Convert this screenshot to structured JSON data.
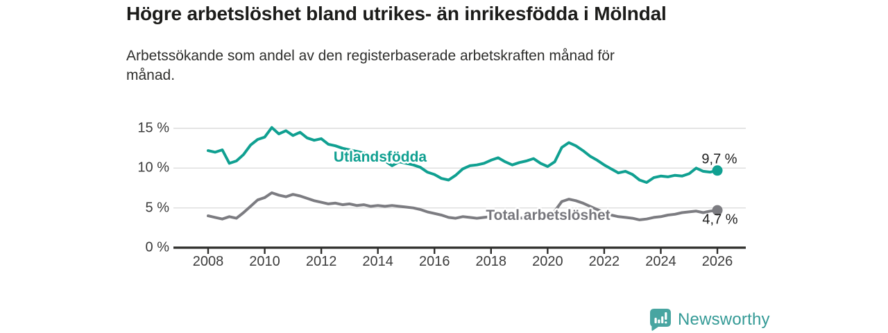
{
  "header": {
    "title": "Högre arbetslöshet bland utrikes- än inrikesfödda i Mölndal",
    "subtitle_line1": "Arbetssökande som andel av den registerbaserade arbetskraften månad för",
    "subtitle_line2": "månad."
  },
  "chart_data": {
    "type": "line",
    "title": "Högre arbetslöshet bland utrikes- än inrikesfödda i Mölndal",
    "subtitle": "Arbetssökande som andel av den registerbaserade arbetskraften månad för månad.",
    "unit": "%",
    "x_start": 2008,
    "x_step": 0.25,
    "x_ticks": [
      2008,
      2010,
      2012,
      2014,
      2016,
      2018,
      2020,
      2022,
      2024,
      2026
    ],
    "xlim": [
      2006.8,
      2027
    ],
    "ylim": [
      0,
      16.3
    ],
    "grid": "horizontal",
    "y_ticks": [
      {
        "value": 0,
        "label": "0 %"
      },
      {
        "value": 5,
        "label": "5 %"
      },
      {
        "value": 10,
        "label": "10 %"
      },
      {
        "value": 15,
        "label": "15 %"
      }
    ],
    "colors": {
      "accent_teal": "#10a091",
      "neutral_gray": "#7c7c81",
      "grid": "#dcdcdc",
      "axis": "#2d2d2b"
    },
    "series": [
      {
        "name": "Utlandsfödda",
        "color": "#10a091",
        "end_value": 9.7,
        "end_label": "9,7 %",
        "values": [
          12.2,
          12.0,
          12.3,
          10.6,
          10.9,
          11.7,
          12.9,
          13.6,
          13.9,
          15.1,
          14.3,
          14.7,
          14.1,
          14.5,
          13.8,
          13.5,
          13.7,
          13.0,
          12.8,
          12.5,
          12.3,
          12.1,
          11.9,
          11.7,
          11.5,
          10.9,
          10.3,
          10.8,
          10.6,
          10.4,
          10.1,
          9.5,
          9.2,
          8.7,
          8.5,
          9.1,
          9.9,
          10.3,
          10.4,
          10.6,
          11.0,
          11.3,
          10.8,
          10.4,
          10.7,
          10.9,
          11.2,
          10.6,
          10.2,
          10.8,
          12.6,
          13.2,
          12.8,
          12.2,
          11.5,
          11.0,
          10.4,
          9.9,
          9.4,
          9.6,
          9.2,
          8.5,
          8.2,
          8.8,
          9.0,
          8.9,
          9.1,
          9.0,
          9.3,
          10.0,
          9.6,
          9.5,
          9.7
        ]
      },
      {
        "name": "Total arbetslöshet",
        "color": "#7c7c81",
        "end_value": 4.7,
        "end_label": "4,7 %",
        "values": [
          4.0,
          3.8,
          3.6,
          3.9,
          3.7,
          4.4,
          5.2,
          6.0,
          6.3,
          6.9,
          6.6,
          6.4,
          6.7,
          6.5,
          6.2,
          5.9,
          5.7,
          5.5,
          5.6,
          5.4,
          5.5,
          5.3,
          5.4,
          5.2,
          5.3,
          5.2,
          5.3,
          5.2,
          5.1,
          5.0,
          4.8,
          4.5,
          4.3,
          4.1,
          3.8,
          3.7,
          3.9,
          3.8,
          3.7,
          3.8,
          3.9,
          3.8,
          3.7,
          3.6,
          3.7,
          3.8,
          3.9,
          3.8,
          3.9,
          4.6,
          5.8,
          6.1,
          5.9,
          5.6,
          5.2,
          4.8,
          4.4,
          4.1,
          3.9,
          3.8,
          3.7,
          3.5,
          3.6,
          3.8,
          3.9,
          4.1,
          4.2,
          4.4,
          4.5,
          4.6,
          4.4,
          4.6,
          4.7
        ]
      }
    ],
    "legend_position": "inline-labels"
  },
  "footer": {
    "brand": "Newsworthy"
  }
}
